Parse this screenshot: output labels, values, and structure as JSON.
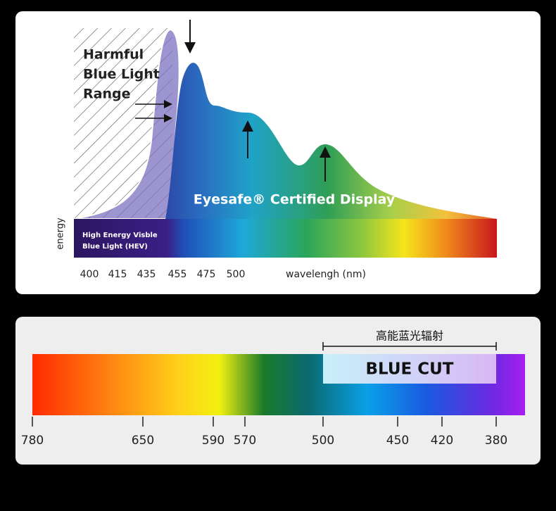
{
  "top_panel": {
    "harmful_label": [
      "Harmful",
      "Blue Light",
      "Range"
    ],
    "certified_label": "Eyesafe® Certified Display",
    "hev_label": [
      "High Energy Visble",
      "Blue Light (HEV)"
    ],
    "y_axis_label": "energy",
    "wavelength_ticks": [
      "400",
      "415",
      "435",
      "455",
      "475",
      "500"
    ],
    "x_axis_label": "wavelengh (nm)"
  },
  "bottom_panel": {
    "bracket_label": "高能蓝光辐射",
    "cut_label": "BLUE CUT",
    "wavelength_ticks": [
      "780",
      "650",
      "590",
      "570",
      "500",
      "450",
      "420",
      "380"
    ]
  }
}
